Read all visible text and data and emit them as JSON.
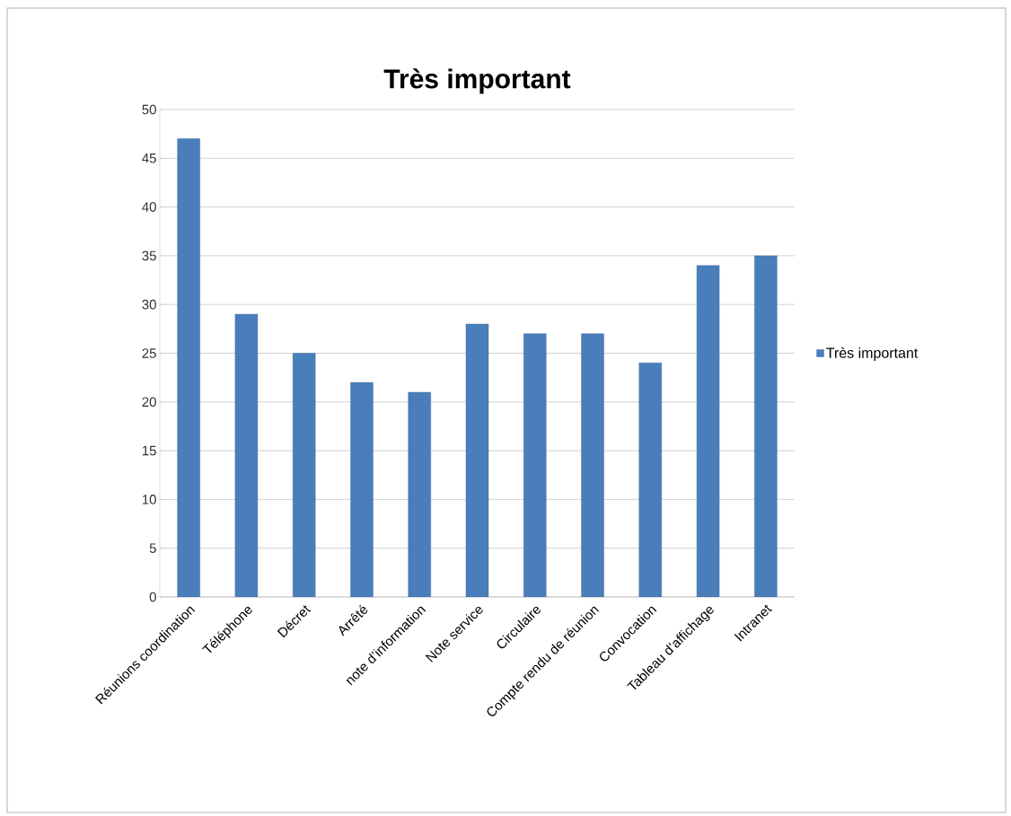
{
  "chart_data": {
    "type": "bar",
    "title": "Très important",
    "categories": [
      "Réunions coordination",
      "Téléphone",
      "Décret",
      "Arrêté",
      "note d’information",
      "Note service",
      "Circulaire",
      "Compte rendu de réunion",
      "Convocation",
      "Tableau d’affichage",
      "Intranet"
    ],
    "series": [
      {
        "name": "Très important",
        "color": "#4a7ebb",
        "values": [
          47,
          29,
          25,
          22,
          21,
          28,
          27,
          27,
          24,
          34,
          35
        ]
      }
    ],
    "ylim": [
      0,
      50
    ],
    "yticks": [
      0,
      5,
      10,
      15,
      20,
      25,
      30,
      35,
      40,
      45,
      50
    ],
    "grid": "y",
    "legend": "right"
  }
}
